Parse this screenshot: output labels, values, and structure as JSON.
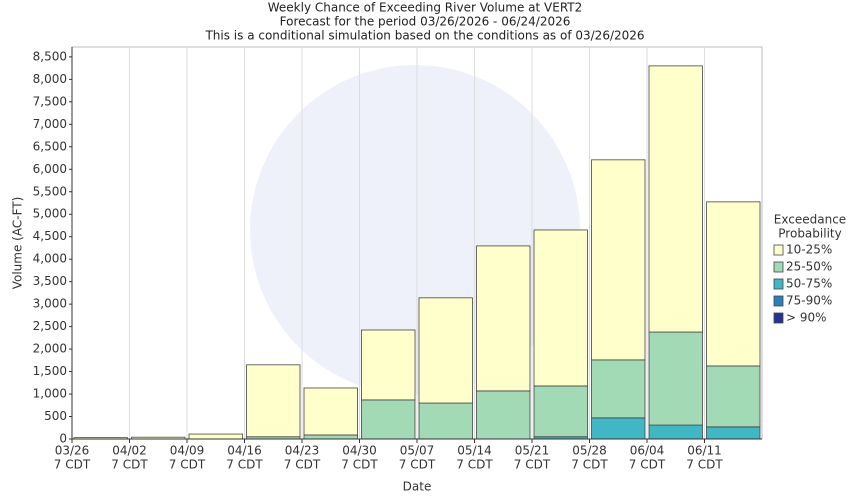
{
  "chart_data": {
    "type": "stacked_bar",
    "title": [
      "Weekly Chance of Exceeding River Volume at VERT2",
      "Forecast for the period 03/26/2026 - 06/24/2026",
      "This is a conditional simulation based on the conditions as of 03/26/2026"
    ],
    "x_label": "Date",
    "y_label": "Volume (AC-FT)",
    "categories": [
      [
        "03/26",
        "7 CDT"
      ],
      [
        "04/02",
        "7 CDT"
      ],
      [
        "04/09",
        "7 CDT"
      ],
      [
        "04/16",
        "7 CDT"
      ],
      [
        "04/23",
        "7 CDT"
      ],
      [
        "04/30",
        "7 CDT"
      ],
      [
        "05/07",
        "7 CDT"
      ],
      [
        "05/14",
        "7 CDT"
      ],
      [
        "05/21",
        "7 CDT"
      ],
      [
        "05/28",
        "7 CDT"
      ],
      [
        "06/04",
        "7 CDT"
      ],
      [
        "06/11",
        "7 CDT"
      ]
    ],
    "legend_title": [
      "Exceedance",
      "Probability"
    ],
    "legend": "right",
    "grid": "x",
    "series": [
      {
        "name": "10-25%",
        "color": "#ffffcc",
        "values": [
          30,
          40,
          110,
          1600,
          1045,
          1555,
          2340,
          3225,
          3470,
          4450,
          5920,
          3650
        ]
      },
      {
        "name": "25-50%",
        "color": "#a1dab4",
        "values": [
          0,
          0,
          0,
          50,
          90,
          870,
          800,
          1070,
          1130,
          1290,
          2070,
          1355
        ]
      },
      {
        "name": "50-75%",
        "color": "#41b6c4",
        "values": [
          0,
          0,
          0,
          0,
          0,
          0,
          0,
          0,
          50,
          470,
          310,
          270
        ]
      },
      {
        "name": "75-90%",
        "color": "#2c7fb8",
        "values": [
          0,
          0,
          0,
          0,
          0,
          0,
          0,
          0,
          0,
          0,
          0,
          0
        ]
      },
      {
        "name": "> 90%",
        "color": "#253494",
        "values": [
          0,
          0,
          0,
          0,
          0,
          0,
          0,
          0,
          0,
          0,
          0,
          0
        ]
      }
    ],
    "ylim": [
      0,
      8720
    ],
    "yticks": [
      0,
      500,
      {
        "value": 1000,
        "label": "1,000"
      },
      {
        "value": 1500,
        "label": "1,500"
      },
      {
        "value": 2000,
        "label": "2,000"
      },
      {
        "value": 2500,
        "label": "2,500"
      },
      {
        "value": 3000,
        "label": "3,000"
      },
      {
        "value": 3500,
        "label": "3,500"
      },
      {
        "value": 4000,
        "label": "4,000"
      },
      {
        "value": 4500,
        "label": "4,500"
      },
      {
        "value": 5000,
        "label": "5,000"
      },
      {
        "value": 5500,
        "label": "5,500"
      },
      {
        "value": 6000,
        "label": "6,000"
      },
      {
        "value": 6500,
        "label": "6,500"
      },
      {
        "value": 7000,
        "label": "7,000"
      },
      {
        "value": 7500,
        "label": "7,500"
      },
      {
        "value": 8000,
        "label": "8,000"
      },
      {
        "value": 8500,
        "label": "8,500"
      }
    ]
  }
}
